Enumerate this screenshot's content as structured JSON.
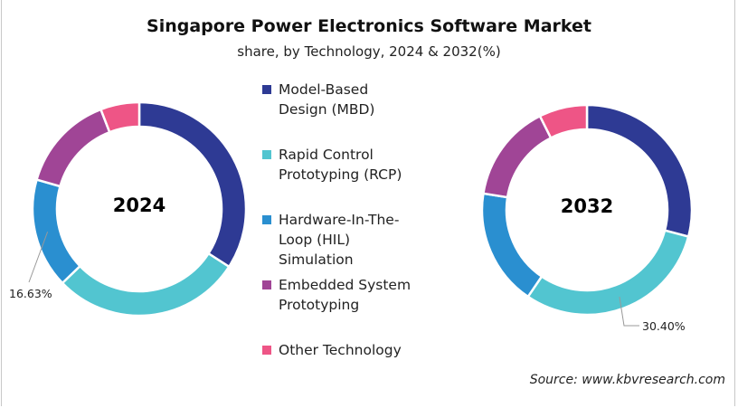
{
  "chart_data": {
    "type": "donut",
    "title": "Singapore Power Electronics Software Market",
    "subtitle": "share, by Technology, 2024 & 2032(%)",
    "categories": [
      "Model-Based Design (MBD)",
      "Rapid Control Prototyping (RCP)",
      "Hardware-In-The-Loop (HIL) Simulation",
      "Embedded System Prototyping",
      "Other Technology"
    ],
    "colors": [
      "#2e3a94",
      "#52c5d0",
      "#2a8fd0",
      "#a04596",
      "#ee5586"
    ],
    "series": [
      {
        "name": "2024",
        "values": [
          34.1,
          28.7,
          16.63,
          14.7,
          5.87
        ],
        "labels": {
          "2": "16.63%"
        }
      },
      {
        "name": "2032",
        "values": [
          29.1,
          30.4,
          18.0,
          15.1,
          7.4
        ],
        "labels": {
          "1": "30.40%"
        }
      }
    ],
    "legend": "center"
  },
  "legend_lines": [
    [
      "Model-Based",
      "Design (MBD)"
    ],
    [
      "Rapid Control",
      "Prototyping (RCP)"
    ],
    [
      "Hardware-In-The-",
      "Loop (HIL)",
      "Simulation"
    ],
    [
      "Embedded System",
      "Prototyping"
    ],
    [
      "Other Technology"
    ]
  ],
  "source": "Source: www.kbvresearch.com"
}
